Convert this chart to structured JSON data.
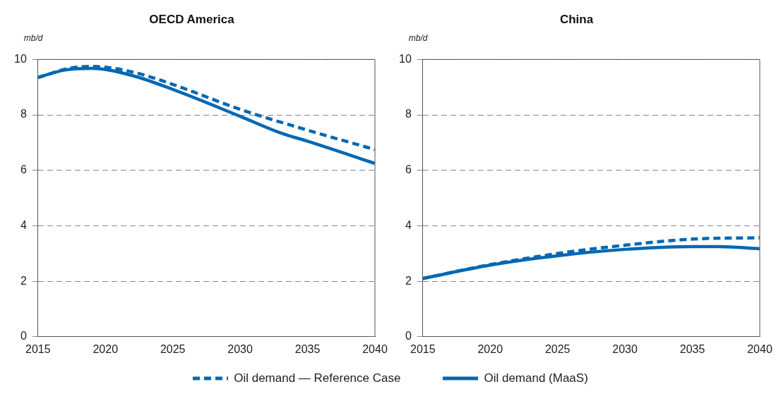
{
  "chart_data": [
    {
      "type": "line",
      "title": "OECD America",
      "ylabel": "mb/d",
      "xlim": [
        2015,
        2040
      ],
      "xticks": [
        2015,
        2020,
        2025,
        2030,
        2035,
        2040
      ],
      "ylim": [
        0,
        10
      ],
      "yticks": [
        0,
        2,
        4,
        6,
        8,
        10
      ],
      "grid": "y",
      "legend": "bottom",
      "marker": "none",
      "series": [
        {
          "name": "Oil demand — Reference Case",
          "color": "#0068b3",
          "line_style": "dashed",
          "x": [
            2015,
            2016,
            2017,
            2019,
            2022,
            2025,
            2030,
            2035,
            2040
          ],
          "values": [
            9.35,
            9.5,
            9.65,
            9.75,
            9.55,
            9.1,
            8.2,
            7.45,
            6.75
          ]
        },
        {
          "name": "Oil demand (MaaS)",
          "color": "#0068b3",
          "line_style": "solid",
          "x": [
            2015,
            2016,
            2017,
            2019,
            2022,
            2025,
            2030,
            2033,
            2035,
            2040
          ],
          "values": [
            9.35,
            9.5,
            9.62,
            9.68,
            9.42,
            8.92,
            7.95,
            7.35,
            7.05,
            6.25
          ]
        }
      ]
    },
    {
      "type": "line",
      "title": "China",
      "ylabel": "mb/d",
      "xlim": [
        2015,
        2040
      ],
      "xticks": [
        2015,
        2020,
        2025,
        2030,
        2035,
        2040
      ],
      "ylim": [
        0,
        10
      ],
      "yticks": [
        0,
        2,
        4,
        6,
        8,
        10
      ],
      "grid": "y",
      "marker": "none",
      "series": [
        {
          "color": "#0068b3",
          "line_style": "dashed",
          "x": [
            2015,
            2020,
            2025,
            2030,
            2035,
            2040
          ],
          "values": [
            2.1,
            2.6,
            3.0,
            3.3,
            3.52,
            3.57
          ]
        },
        {
          "color": "#0068b3",
          "line_style": "solid",
          "x": [
            2015,
            2020,
            2025,
            2030,
            2035,
            2037,
            2040
          ],
          "values": [
            2.1,
            2.58,
            2.92,
            3.15,
            3.25,
            3.25,
            3.17
          ]
        }
      ]
    }
  ]
}
